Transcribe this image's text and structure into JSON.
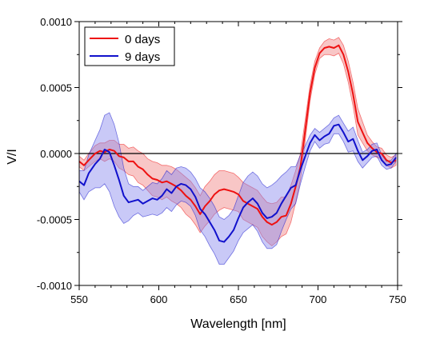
{
  "chart_data": {
    "type": "line",
    "title": "",
    "xlabel": "Wavelength [nm]",
    "ylabel": "V/I",
    "xlim": [
      550,
      750
    ],
    "ylim": [
      -0.001,
      0.001
    ],
    "x_ticks": [
      550,
      600,
      650,
      700,
      750
    ],
    "x_tick_labels": [
      "550",
      "600",
      "650",
      "700",
      "750"
    ],
    "y_ticks": [
      -0.001,
      -0.0005,
      0,
      0.0005,
      0.001
    ],
    "y_tick_labels": [
      "-0.0010",
      "-0.0005",
      "0.0000",
      "0.0005",
      "0.0010"
    ],
    "grid": false,
    "zero_line": true,
    "legend_position": "top-left",
    "series": [
      {
        "name": "0 days",
        "color": "#ee1111",
        "band_color": "#f08080",
        "x": [
          550,
          553,
          556,
          560,
          563,
          566,
          569,
          572,
          575,
          578,
          581,
          584,
          587,
          590,
          593,
          596,
          599,
          602,
          605,
          608,
          611,
          614,
          617,
          620,
          623,
          626,
          629,
          632,
          635,
          638,
          641,
          644,
          647,
          650,
          653,
          656,
          659,
          662,
          665,
          668,
          671,
          674,
          677,
          680,
          683,
          686,
          689,
          692,
          695,
          698,
          701,
          704,
          707,
          710,
          713,
          716,
          719,
          722,
          725,
          728,
          731,
          734,
          737,
          740,
          743,
          746,
          749
        ],
        "y": [
          -6e-05,
          -9e-05,
          -5e-05,
          0.0,
          2e-05,
          1e-05,
          3e-05,
          2e-05,
          -2e-05,
          -3e-05,
          -6e-05,
          -6e-05,
          -0.0001,
          -0.00012,
          -0.00016,
          -0.00019,
          -0.0002,
          -0.00022,
          -0.00021,
          -0.00023,
          -0.00025,
          -0.00028,
          -0.00032,
          -0.00035,
          -0.0004,
          -0.00046,
          -0.0004,
          -0.00036,
          -0.00031,
          -0.00028,
          -0.00027,
          -0.00028,
          -0.00029,
          -0.00031,
          -0.00036,
          -0.00038,
          -0.0004,
          -0.00042,
          -0.00048,
          -0.00052,
          -0.00054,
          -0.00052,
          -0.00048,
          -0.00047,
          -0.00038,
          -0.00025,
          -0.0001,
          0.00018,
          0.00046,
          0.00065,
          0.00076,
          0.0008,
          0.00081,
          0.0008,
          0.00082,
          0.00075,
          0.00062,
          0.00045,
          0.00024,
          0.00016,
          8e-05,
          4e-05,
          1e-05,
          0.0,
          -5e-05,
          -7e-05,
          -5e-05
        ],
        "band": [
          4e-05,
          4e-05,
          5e-05,
          6e-05,
          6e-05,
          7e-05,
          7e-05,
          8e-05,
          9e-05,
          0.0001,
          0.0001,
          0.00011,
          0.00012,
          0.00012,
          0.00012,
          0.00013,
          0.00013,
          0.00013,
          0.00012,
          0.00013,
          0.00013,
          0.00013,
          0.00014,
          0.00014,
          0.00014,
          0.00014,
          0.00015,
          0.00015,
          0.00015,
          0.00015,
          0.00014,
          0.00014,
          0.00014,
          0.00013,
          0.00014,
          0.00014,
          0.00014,
          0.00014,
          0.00015,
          0.00015,
          0.00016,
          0.00015,
          0.00015,
          0.00014,
          0.00014,
          0.00012,
          0.0001,
          8e-05,
          6e-05,
          5e-05,
          4e-05,
          5e-05,
          6e-05,
          6e-05,
          6e-05,
          7e-05,
          8e-05,
          9e-05,
          0.0001,
          8e-05,
          6e-05,
          5e-05,
          4e-05,
          4e-05,
          4e-05,
          4e-05,
          4e-05
        ]
      },
      {
        "name": "9 days",
        "color": "#1111cc",
        "band_color": "#8888ee",
        "x": [
          550,
          553,
          556,
          560,
          563,
          566,
          569,
          572,
          575,
          578,
          581,
          584,
          587,
          590,
          593,
          596,
          599,
          602,
          605,
          608,
          611,
          614,
          617,
          620,
          623,
          626,
          629,
          632,
          635,
          638,
          641,
          644,
          647,
          650,
          653,
          656,
          659,
          662,
          665,
          668,
          671,
          674,
          677,
          680,
          683,
          686,
          689,
          692,
          695,
          698,
          701,
          704,
          707,
          710,
          713,
          716,
          719,
          722,
          725,
          728,
          731,
          734,
          737,
          740,
          743,
          746,
          749
        ],
        "y": [
          -0.00021,
          -0.00024,
          -0.00015,
          -8e-05,
          -4e-05,
          3e-05,
          1e-05,
          -9e-05,
          -0.0002,
          -0.00032,
          -0.00037,
          -0.00036,
          -0.00035,
          -0.00038,
          -0.00036,
          -0.00034,
          -0.00035,
          -0.00032,
          -0.00027,
          -0.0003,
          -0.00025,
          -0.00023,
          -0.00024,
          -0.00027,
          -0.00033,
          -0.00042,
          -0.00046,
          -0.00052,
          -0.00058,
          -0.00066,
          -0.00067,
          -0.00063,
          -0.00058,
          -0.00049,
          -0.00041,
          -0.00037,
          -0.00034,
          -0.00038,
          -0.00045,
          -0.00049,
          -0.00048,
          -0.00045,
          -0.00038,
          -0.00032,
          -0.00026,
          -0.00024,
          -0.00012,
          -2e-05,
          8e-05,
          0.00014,
          0.0001,
          0.00013,
          0.00015,
          0.00021,
          0.00022,
          0.00016,
          9e-05,
          0.00011,
          2e-05,
          -5e-05,
          -2e-05,
          2e-05,
          3e-05,
          -5e-05,
          -9e-05,
          -8e-05,
          -3e-05
        ],
        "band": [
          8e-05,
          0.00011,
          0.00014,
          0.00018,
          0.00022,
          0.00026,
          0.0003,
          0.00031,
          0.00028,
          0.00021,
          0.00014,
          0.00011,
          0.0001,
          0.0001,
          0.00011,
          0.00012,
          0.00012,
          0.00013,
          0.00014,
          0.00014,
          0.00014,
          0.00013,
          0.00013,
          0.00013,
          0.00014,
          0.00016,
          0.00017,
          0.00018,
          0.00018,
          0.00018,
          0.00017,
          0.00016,
          0.00016,
          0.00017,
          0.00019,
          0.0002,
          0.0002,
          0.00021,
          0.00022,
          0.00023,
          0.00024,
          0.00024,
          0.00021,
          0.00018,
          0.00016,
          0.00014,
          0.00011,
          8e-05,
          6e-05,
          5e-05,
          6e-05,
          6e-05,
          7e-05,
          6e-05,
          7e-05,
          7e-05,
          8e-05,
          9e-05,
          8e-05,
          6e-05,
          5e-05,
          5e-05,
          5e-05,
          4e-05,
          3e-05,
          3e-05,
          3e-05
        ]
      }
    ]
  }
}
